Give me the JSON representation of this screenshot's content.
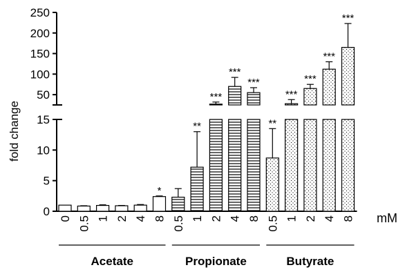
{
  "chart_data": {
    "type": "bar",
    "title": "",
    "ylabel": "fold change",
    "unit_label": "mM",
    "axis_break": true,
    "lower_axis": {
      "ylim": [
        0,
        15
      ],
      "ticks": [
        0,
        5,
        10,
        15
      ]
    },
    "upper_axis": {
      "ylim": [
        25,
        250
      ],
      "ticks": [
        50,
        100,
        150,
        200,
        250
      ]
    },
    "grid": false,
    "legend": "none",
    "groups": [
      {
        "name": "Acetate",
        "pattern": "none",
        "categories": [
          "0",
          "0.5",
          "1",
          "2",
          "4",
          "8"
        ],
        "values": [
          1.0,
          0.85,
          0.95,
          0.9,
          1.0,
          2.4
        ],
        "errors": [
          0,
          0.05,
          0.1,
          0.05,
          0.1,
          0.1
        ],
        "significance": [
          "",
          "",
          "",
          "",
          "",
          "*"
        ]
      },
      {
        "name": "Propionate",
        "pattern": "horizontal-lines",
        "categories": [
          "0.5",
          "1",
          "2",
          "4",
          "8"
        ],
        "values": [
          2.3,
          7.2,
          27,
          70,
          55
        ],
        "errors": [
          1.4,
          5.8,
          5,
          22,
          12
        ],
        "significance": [
          "",
          "**",
          "***",
          "***",
          "***"
        ]
      },
      {
        "name": "Butyrate",
        "pattern": "dots",
        "categories": [
          "0.5",
          "1",
          "2",
          "4",
          "8"
        ],
        "values": [
          8.7,
          28,
          65,
          112,
          165
        ],
        "errors": [
          4.8,
          10,
          10,
          18,
          58
        ],
        "significance": [
          "**",
          "***",
          "***",
          "***",
          "***"
        ]
      }
    ]
  }
}
